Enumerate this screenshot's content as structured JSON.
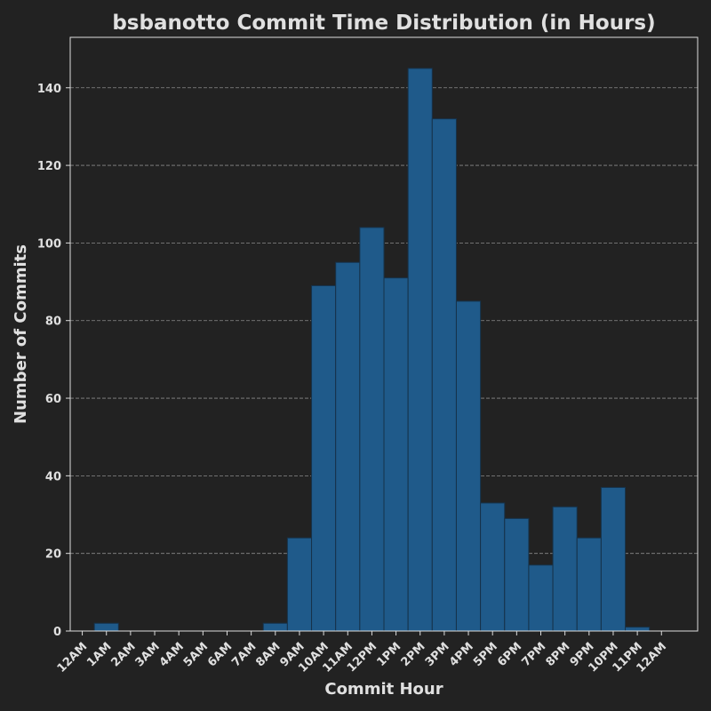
{
  "chart_data": {
    "type": "bar",
    "title": "bsbanotto Commit Time Distribution (in Hours)",
    "xlabel": "Commit Hour",
    "ylabel": "Number of Commits",
    "x_tick_labels": [
      "12AM",
      "1AM",
      "2AM",
      "3AM",
      "4AM",
      "5AM",
      "6AM",
      "7AM",
      "8AM",
      "9AM",
      "10AM",
      "11AM",
      "12PM",
      "1PM",
      "2PM",
      "3PM",
      "4PM",
      "5PM",
      "6PM",
      "7PM",
      "8PM",
      "9PM",
      "10PM",
      "11PM",
      "12AM"
    ],
    "x_ticks": [
      0,
      1,
      2,
      3,
      4,
      5,
      6,
      7,
      8,
      9,
      10,
      11,
      12,
      13,
      14,
      15,
      16,
      17,
      18,
      19,
      20,
      21,
      22,
      23,
      24
    ],
    "xlim": [
      -0.5,
      25.5
    ],
    "ylim": [
      0,
      153
    ],
    "y_ticks": [
      0,
      20,
      40,
      60,
      80,
      100,
      120,
      140
    ],
    "bins": [
      1,
      2,
      3,
      4,
      5,
      6,
      7,
      8,
      9,
      10,
      11,
      12,
      13,
      14,
      15,
      16,
      17,
      18,
      19,
      20,
      21,
      22,
      23,
      24
    ],
    "values": [
      2,
      0,
      0,
      0,
      0,
      0,
      0,
      2,
      24,
      89,
      95,
      104,
      91,
      145,
      132,
      85,
      33,
      29,
      17,
      32,
      24,
      37,
      1,
      0
    ],
    "grid": "y-dashed",
    "colors": {
      "background": "#222222",
      "bar_fill": "#1f5a8a",
      "bar_edge": "#16324a",
      "text": "#e0e0e0",
      "grid": "#8a8a8a"
    }
  }
}
